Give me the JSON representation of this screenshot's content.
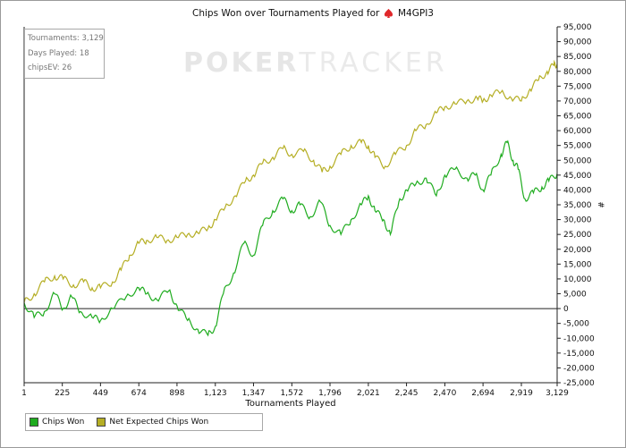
{
  "title": "Chips Won over Tournaments Played for",
  "player": "M4GPI3",
  "stats": {
    "tournaments": "Tournaments: 3,129",
    "days_played": "Days Played: 18",
    "chipsev": "chipsEV: 26"
  },
  "watermark": {
    "part1": "POKER",
    "part2": "TRACKER"
  },
  "legend": [
    {
      "label": "Chips Won",
      "color": "#1fac1f"
    },
    {
      "label": "Net Expected Chips Won",
      "color": "#b5ae24"
    }
  ],
  "chart_data": {
    "type": "line",
    "xlabel": "Tournaments Played",
    "ylabel": "#",
    "xlim": [
      1,
      3129
    ],
    "ylim": [
      -25000,
      95000
    ],
    "x_ticks": [
      "1",
      "225",
      "449",
      "674",
      "898",
      "1,123",
      "1,347",
      "1,572",
      "1,796",
      "2,021",
      "2,245",
      "2,470",
      "2,694",
      "2,919",
      "3,129"
    ],
    "y_ticks": [
      95000,
      90000,
      85000,
      80000,
      75000,
      70000,
      65000,
      60000,
      55000,
      50000,
      45000,
      40000,
      35000,
      30000,
      25000,
      20000,
      15000,
      10000,
      5000,
      0,
      -5000,
      -10000,
      -15000,
      -20000,
      -25000
    ],
    "y_tick_labels": [
      "95,000",
      "90,000",
      "85,000",
      "80,000",
      "75,000",
      "70,000",
      "65,000",
      "60,000",
      "55,000",
      "50,000",
      "45,000",
      "40,000",
      "35,000",
      "30,000",
      "25,000",
      "20,000",
      "15,000",
      "10,000",
      "5,000",
      "0",
      "-5,000",
      "-10,000",
      "-15,000",
      "-20,000",
      "-25,000"
    ],
    "grid": false,
    "legend_position": "bottom-left",
    "series": [
      {
        "name": "Chips Won",
        "color": "#1fac1f",
        "points": [
          [
            1,
            2000
          ],
          [
            60,
            -3000
          ],
          [
            120,
            -1000
          ],
          [
            180,
            5000
          ],
          [
            230,
            0
          ],
          [
            280,
            4000
          ],
          [
            330,
            -1000
          ],
          [
            400,
            -3000
          ],
          [
            449,
            -4000
          ],
          [
            520,
            0
          ],
          [
            600,
            4000
          ],
          [
            674,
            7000
          ],
          [
            720,
            5000
          ],
          [
            780,
            3000
          ],
          [
            850,
            6000
          ],
          [
            898,
            1000
          ],
          [
            960,
            -4000
          ],
          [
            1020,
            -7000
          ],
          [
            1080,
            -9000
          ],
          [
            1123,
            -6000
          ],
          [
            1170,
            5000
          ],
          [
            1230,
            12000
          ],
          [
            1290,
            22000
          ],
          [
            1347,
            18000
          ],
          [
            1400,
            28000
          ],
          [
            1460,
            33000
          ],
          [
            1520,
            37000
          ],
          [
            1572,
            33000
          ],
          [
            1620,
            35000
          ],
          [
            1680,
            31000
          ],
          [
            1740,
            36000
          ],
          [
            1796,
            28000
          ],
          [
            1860,
            25000
          ],
          [
            1920,
            30000
          ],
          [
            1980,
            35000
          ],
          [
            2021,
            38000
          ],
          [
            2060,
            33000
          ],
          [
            2110,
            30000
          ],
          [
            2150,
            25000
          ],
          [
            2200,
            36000
          ],
          [
            2245,
            40000
          ],
          [
            2300,
            42000
          ],
          [
            2360,
            44000
          ],
          [
            2420,
            38000
          ],
          [
            2470,
            45000
          ],
          [
            2530,
            47000
          ],
          [
            2600,
            44000
          ],
          [
            2650,
            45000
          ],
          [
            2694,
            40000
          ],
          [
            2740,
            45000
          ],
          [
            2800,
            52000
          ],
          [
            2835,
            56000
          ],
          [
            2870,
            50000
          ],
          [
            2900,
            47000
          ],
          [
            2940,
            37000
          ],
          [
            2990,
            39000
          ],
          [
            3040,
            41000
          ],
          [
            3080,
            43000
          ],
          [
            3129,
            45500
          ]
        ]
      },
      {
        "name": "Net Expected Chips Won",
        "color": "#b5ae24",
        "points": [
          [
            1,
            2000
          ],
          [
            60,
            5000
          ],
          [
            120,
            9000
          ],
          [
            180,
            11000
          ],
          [
            230,
            10000
          ],
          [
            290,
            8000
          ],
          [
            350,
            9000
          ],
          [
            400,
            7000
          ],
          [
            449,
            7000
          ],
          [
            520,
            9000
          ],
          [
            570,
            13000
          ],
          [
            620,
            18000
          ],
          [
            674,
            22000
          ],
          [
            720,
            23000
          ],
          [
            780,
            24000
          ],
          [
            840,
            23000
          ],
          [
            898,
            24000
          ],
          [
            960,
            25000
          ],
          [
            1020,
            25500
          ],
          [
            1080,
            27000
          ],
          [
            1123,
            30000
          ],
          [
            1180,
            34000
          ],
          [
            1240,
            38000
          ],
          [
            1300,
            43000
          ],
          [
            1347,
            45000
          ],
          [
            1400,
            49000
          ],
          [
            1460,
            51000
          ],
          [
            1520,
            54000
          ],
          [
            1572,
            52000
          ],
          [
            1640,
            53000
          ],
          [
            1700,
            50000
          ],
          [
            1750,
            46000
          ],
          [
            1796,
            48000
          ],
          [
            1860,
            52000
          ],
          [
            1920,
            55000
          ],
          [
            1980,
            56000
          ],
          [
            2021,
            55000
          ],
          [
            2060,
            51000
          ],
          [
            2120,
            48000
          ],
          [
            2180,
            52000
          ],
          [
            2245,
            55000
          ],
          [
            2300,
            60000
          ],
          [
            2360,
            62000
          ],
          [
            2420,
            66000
          ],
          [
            2470,
            68000
          ],
          [
            2530,
            69000
          ],
          [
            2600,
            70000
          ],
          [
            2660,
            71000
          ],
          [
            2694,
            70000
          ],
          [
            2740,
            72000
          ],
          [
            2800,
            73000
          ],
          [
            2860,
            71000
          ],
          [
            2919,
            70000
          ],
          [
            2970,
            74000
          ],
          [
            3020,
            77000
          ],
          [
            3070,
            80000
          ],
          [
            3110,
            82000
          ],
          [
            3129,
            82500
          ]
        ]
      }
    ]
  }
}
